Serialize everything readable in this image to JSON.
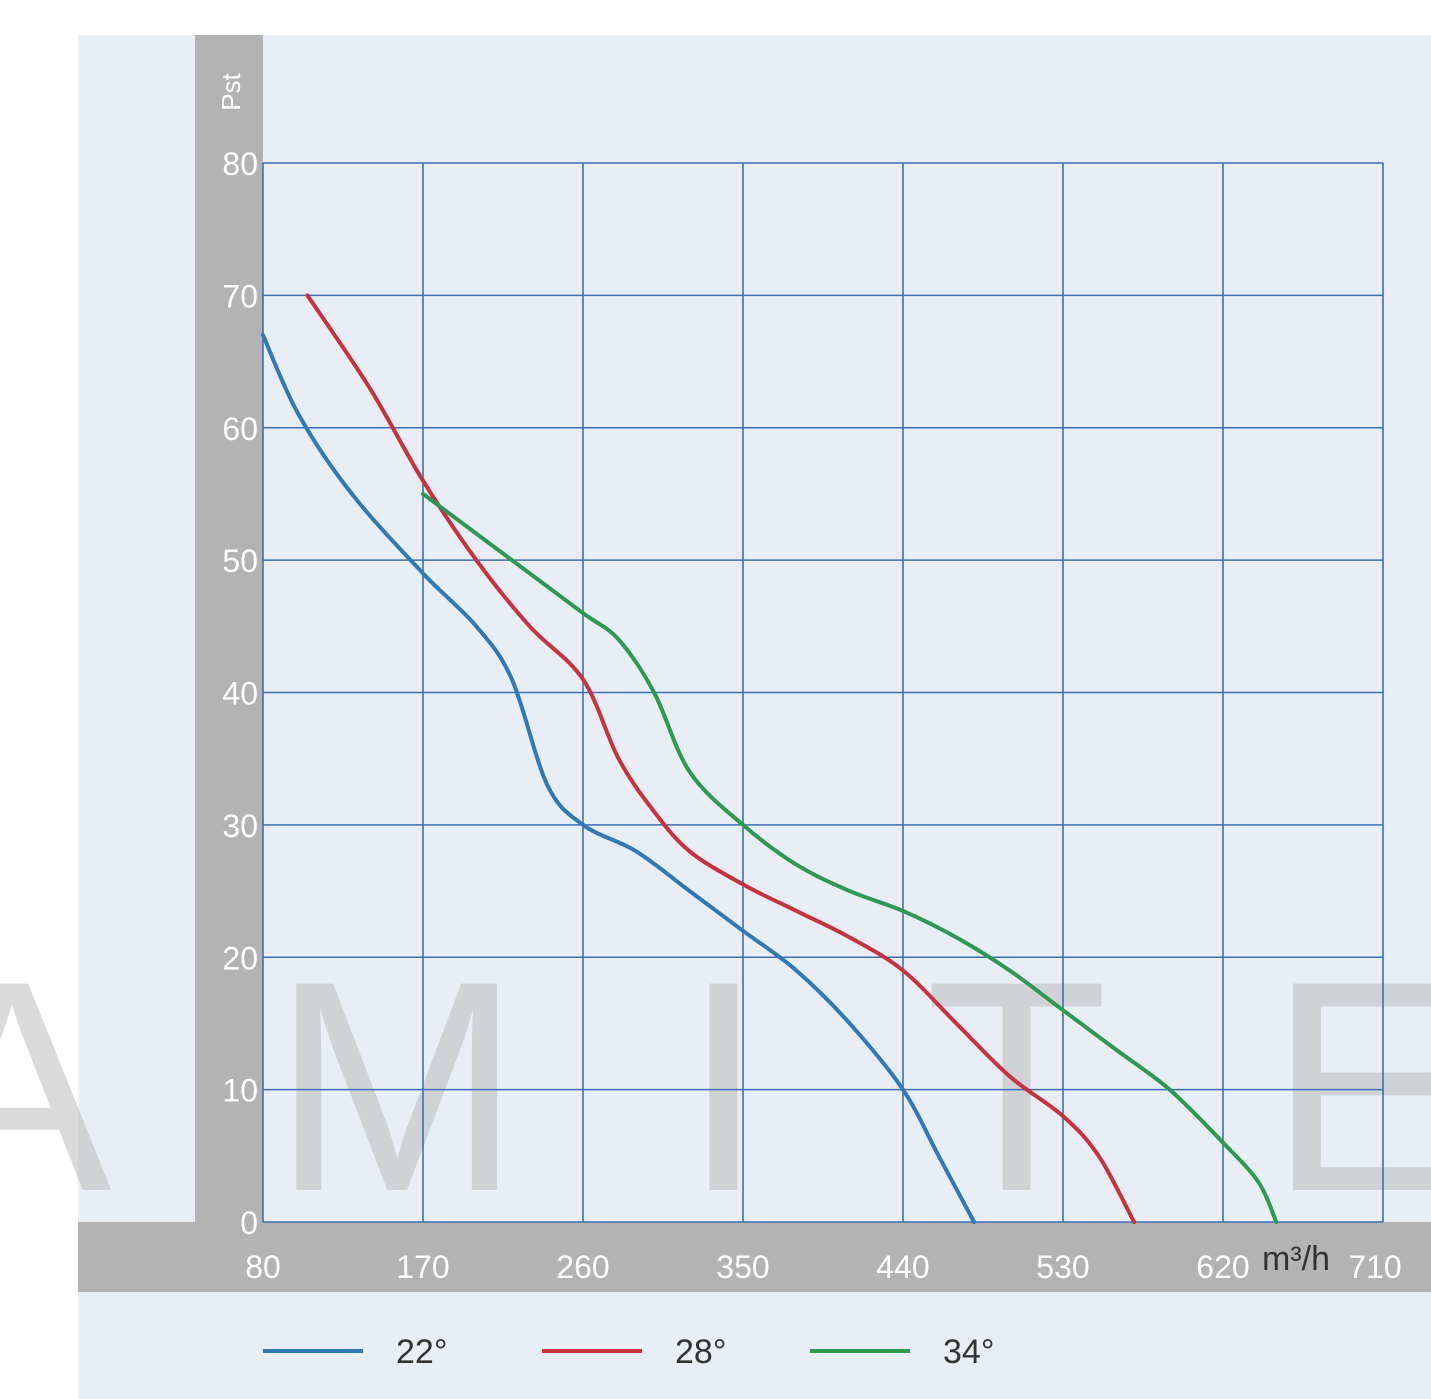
{
  "chart_data": {
    "type": "line",
    "title": "",
    "xlabel": "",
    "ylabel": "Pst",
    "unit": "m³/h",
    "xlim": [
      80,
      710
    ],
    "ylim": [
      0,
      80
    ],
    "x_ticks": [
      "80",
      "170",
      "260",
      "350",
      "440",
      "530",
      "620",
      "710"
    ],
    "y_ticks": [
      "0",
      "10",
      "20",
      "30",
      "40",
      "50",
      "60",
      "70",
      "80"
    ],
    "grid": true,
    "legend_position": "bottom",
    "watermark": "AMITE",
    "series": [
      {
        "name": "22°",
        "color": "#2e79b7",
        "points": [
          [
            80,
            67
          ],
          [
            100,
            61
          ],
          [
            130,
            55
          ],
          [
            170,
            49
          ],
          [
            200,
            45
          ],
          [
            220,
            41
          ],
          [
            240,
            33
          ],
          [
            260,
            30
          ],
          [
            290,
            28
          ],
          [
            320,
            25
          ],
          [
            350,
            22
          ],
          [
            380,
            19
          ],
          [
            410,
            15
          ],
          [
            440,
            10
          ],
          [
            460,
            5
          ],
          [
            480,
            0
          ]
        ]
      },
      {
        "name": "28°",
        "color": "#c8323f",
        "points": [
          [
            105,
            70
          ],
          [
            140,
            63
          ],
          [
            170,
            56
          ],
          [
            200,
            50
          ],
          [
            230,
            45
          ],
          [
            260,
            41
          ],
          [
            280,
            35
          ],
          [
            300,
            31
          ],
          [
            320,
            28
          ],
          [
            350,
            25.5
          ],
          [
            380,
            23.5
          ],
          [
            410,
            21.5
          ],
          [
            440,
            19
          ],
          [
            470,
            15
          ],
          [
            500,
            11
          ],
          [
            530,
            8
          ],
          [
            550,
            5
          ],
          [
            570,
            0
          ]
        ]
      },
      {
        "name": "34°",
        "color": "#2c9a4f",
        "points": [
          [
            170,
            55
          ],
          [
            200,
            52
          ],
          [
            230,
            49
          ],
          [
            260,
            46
          ],
          [
            280,
            44
          ],
          [
            300,
            40
          ],
          [
            320,
            34
          ],
          [
            350,
            30
          ],
          [
            380,
            27
          ],
          [
            410,
            25
          ],
          [
            440,
            23.5
          ],
          [
            470,
            21.5
          ],
          [
            500,
            19
          ],
          [
            530,
            16
          ],
          [
            560,
            13
          ],
          [
            590,
            10
          ],
          [
            620,
            6
          ],
          [
            640,
            3
          ],
          [
            650,
            0
          ]
        ]
      }
    ]
  }
}
